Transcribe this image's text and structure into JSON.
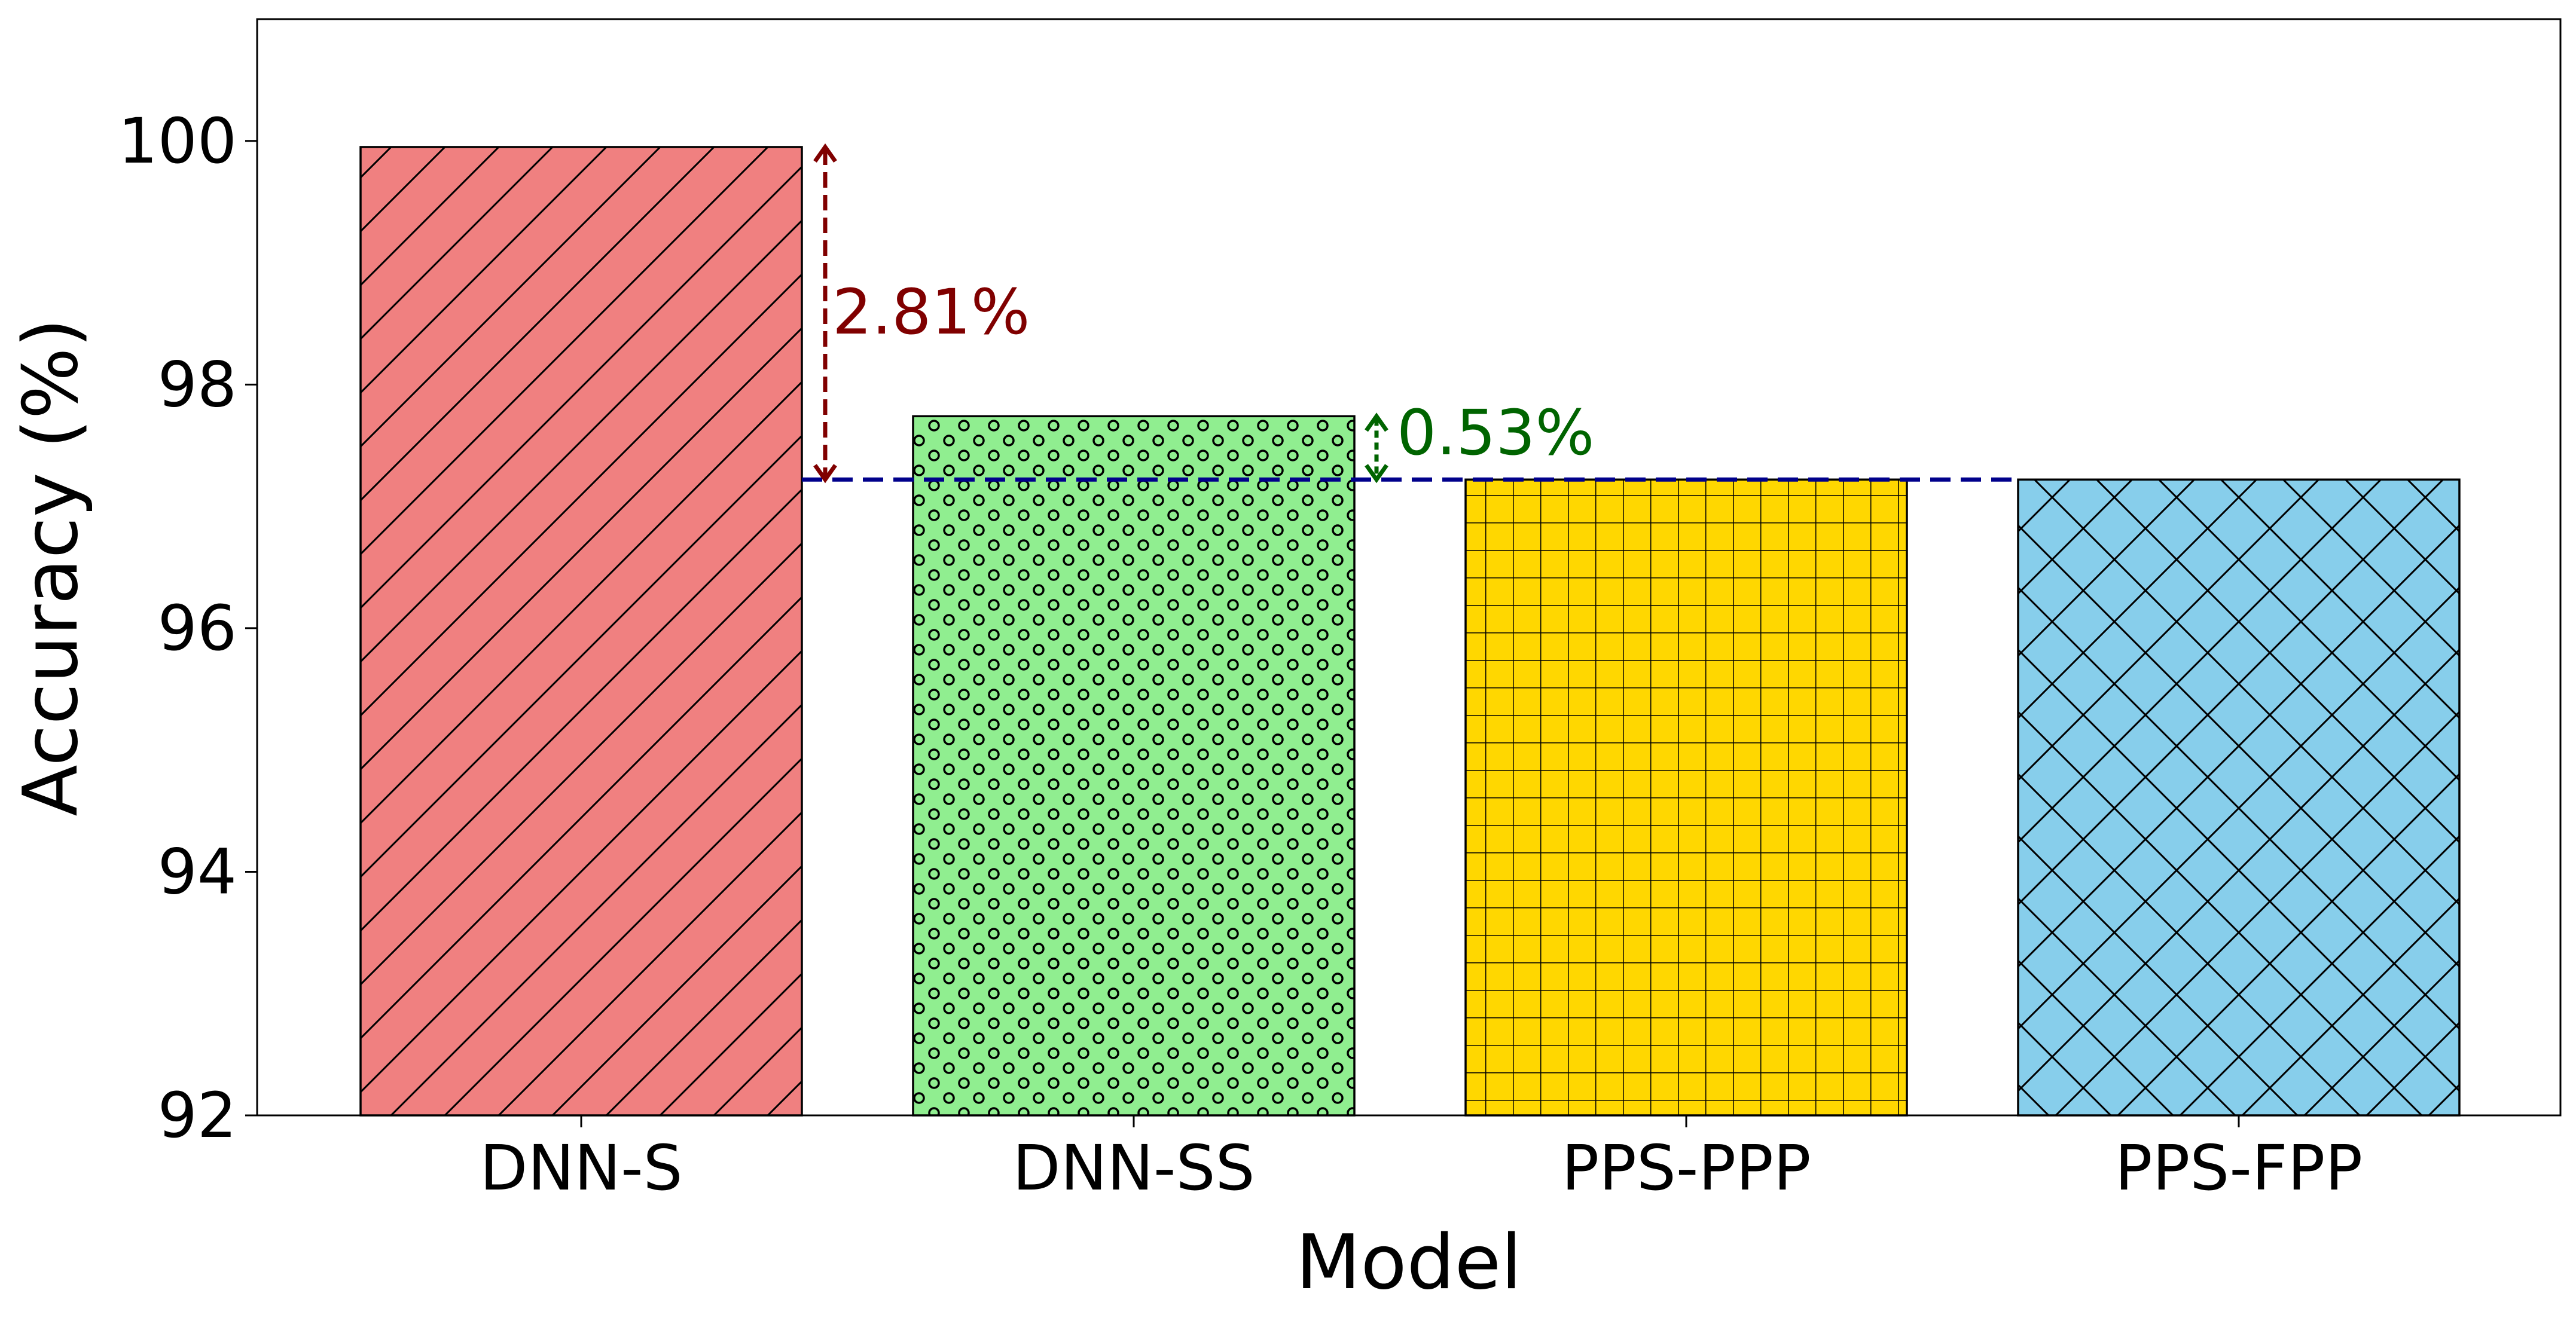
{
  "chart_data": {
    "type": "bar",
    "title": "",
    "xlabel": "Model",
    "ylabel": "Accuracy (%)",
    "ylim": [
      92,
      101
    ],
    "yticks": [
      92,
      94,
      96,
      98,
      100
    ],
    "ytick_labels": [
      "92",
      "94",
      "96",
      "98",
      "100"
    ],
    "grid": false,
    "categories": [
      "DNN-S",
      "DNN-SS",
      "PPS-PPP",
      "PPS-FPP"
    ],
    "values": [
      99.95,
      97.74,
      97.22,
      97.22
    ],
    "bar_colors": [
      "#f08080",
      "#90ee90",
      "#ffd700",
      "#87ceeb"
    ],
    "hatches": [
      "diagonal",
      "circles",
      "grid",
      "crosshatch"
    ],
    "reference_line": {
      "value": 97.22,
      "color": "#00008b",
      "style": "dashed"
    },
    "annotations": [
      {
        "label": "2.81%",
        "from": 97.22,
        "to": 99.95,
        "color": "#800000"
      },
      {
        "label": "0.53%",
        "from": 97.22,
        "to": 97.74,
        "color": "#006400"
      }
    ]
  }
}
